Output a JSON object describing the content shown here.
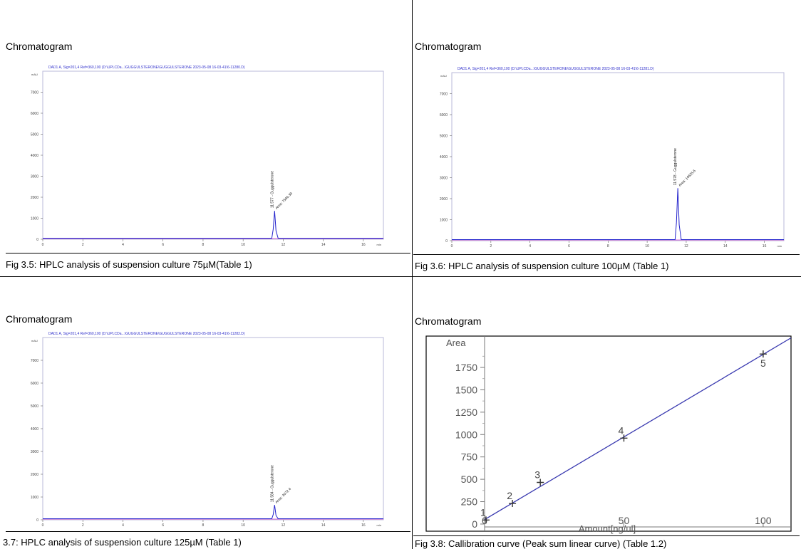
{
  "panels": [
    {
      "title": "Chromatogram",
      "caption": "Fig 3.5: HPLC analysis of suspension culture 75µM(Table 1)",
      "chart_data": {
        "type": "line",
        "header": "DAD1 A, Sig=201,4 Ref=360,100 (D:\\UPLCDa...\\GUGGULSTERONE\\GUGGULSTERONE 2023-05-08 16-03-41\\6-11280.D)",
        "y_unit": "mAU",
        "y_ticks": [
          0,
          1000,
          2000,
          3000,
          4000,
          5000,
          6000,
          7000
        ],
        "x_ticks": [
          0,
          2,
          4,
          6,
          8,
          10,
          12,
          14,
          16
        ],
        "x_unit": "min",
        "xlim": [
          0,
          17
        ],
        "ylim": [
          0,
          8000
        ],
        "peak": {
          "rt": 11.57,
          "height": 1350,
          "label": "11.577 - Guggulsterone",
          "area_label": "Area: 7546.39"
        }
      }
    },
    {
      "title": "Chromatogram",
      "caption": "Fig 3.6: HPLC analysis of suspension culture 100µM (Table 1)",
      "chart_data": {
        "type": "line",
        "header": "DAD1 A, Sig=201,4 Ref=360,100 (D:\\UPLCDa...\\GUGGULSTERONE\\GUGGULSTERONE 2023-05-08 16-03-41\\6-11281.D)",
        "y_unit": "mAU",
        "y_ticks": [
          0,
          1000,
          2000,
          3000,
          4000,
          5000,
          6000,
          7000
        ],
        "x_ticks": [
          0,
          2,
          4,
          6,
          8,
          10,
          12,
          14,
          16
        ],
        "x_unit": "min",
        "xlim": [
          0,
          17
        ],
        "ylim": [
          0,
          8000
        ],
        "peak": {
          "rt": 11.57,
          "height": 2500,
          "label": "11.578 - Guggulsterone",
          "area_label": "Area: 14625.6"
        }
      }
    },
    {
      "title": "Chromatogram",
      "caption": "3.7: HPLC analysis of suspension culture 125µM (Table 1)",
      "chart_data": {
        "type": "line",
        "header": "DAD1 A, Sig=201,4 Ref=360,100 (D:\\UPLCDa...\\GUGGULSTERONE\\GUGGULSTERONE 2023-05-08 16-03-41\\6-11282.D)",
        "y_unit": "mAU",
        "y_ticks": [
          0,
          1000,
          2000,
          3000,
          4000,
          5000,
          6000,
          7000
        ],
        "x_ticks": [
          0,
          2,
          4,
          6,
          8,
          10,
          12,
          14,
          16
        ],
        "x_unit": "min",
        "xlim": [
          0,
          17
        ],
        "ylim": [
          0,
          8000
        ],
        "peak": {
          "rt": 11.57,
          "height": 650,
          "label": "11.584 - Guggulsterone",
          "area_label": "Area: 3072.4"
        }
      }
    },
    {
      "title": "Chromatogram",
      "caption": "Fig 3.8: Callibration curve (Peak sum linear curve) (Table 1.2)",
      "chart_data": {
        "type": "scatter",
        "xlabel": "Amount[ng/ul]",
        "ylabel": "Area",
        "xlim": [
          0,
          110
        ],
        "ylim": [
          -80,
          2100
        ],
        "x_ticks": [
          0,
          50,
          100
        ],
        "y_ticks": [
          0,
          250,
          500,
          750,
          1000,
          1250,
          1500,
          1750
        ],
        "points": [
          {
            "label": "1",
            "x": 0.5,
            "y": 45
          },
          {
            "label": "2",
            "x": 10,
            "y": 230
          },
          {
            "label": "3",
            "x": 20,
            "y": 465
          },
          {
            "label": "4",
            "x": 50,
            "y": 960
          },
          {
            "label": "5",
            "x": 100,
            "y": 1900
          }
        ],
        "fit_line": {
          "x0": 0,
          "y0": 50,
          "x1": 110,
          "y1": 2080
        },
        "line_color": "#3a3ab0"
      }
    }
  ]
}
